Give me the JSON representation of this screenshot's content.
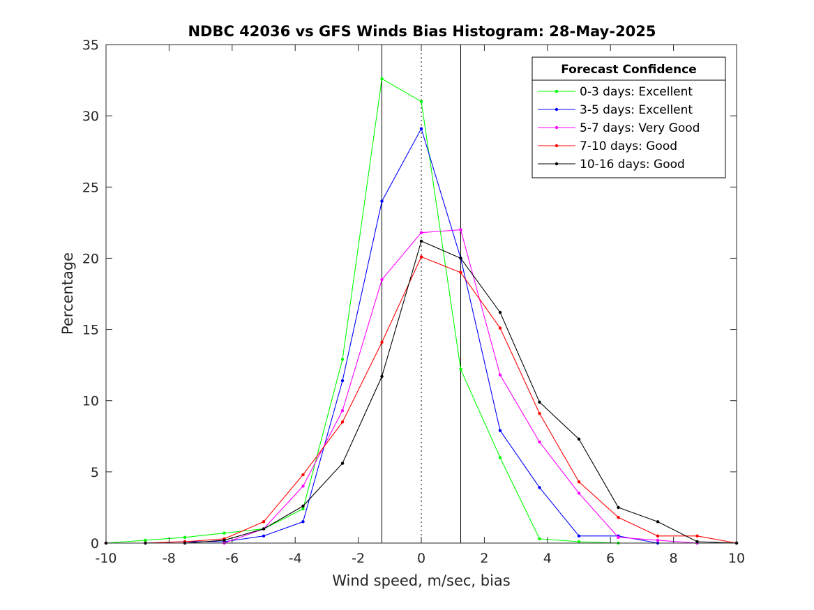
{
  "chart_data": {
    "type": "line",
    "title": "NDBC 42036 vs GFS Winds Bias Histogram: 28-May-2025",
    "xlabel": "Wind speed, m/sec, bias",
    "ylabel": "Percentage",
    "xlim": [
      -10,
      10
    ],
    "ylim": [
      0,
      35
    ],
    "xticks": [
      -10,
      -8,
      -6,
      -4,
      -2,
      0,
      2,
      4,
      6,
      8,
      10
    ],
    "yticks": [
      0,
      5,
      10,
      15,
      20,
      25,
      30,
      35
    ],
    "grid": false,
    "legend": {
      "title": "Forecast Confidence",
      "placement": "top-right"
    },
    "reference_lines": {
      "solid": [
        -1.25,
        1.25
      ],
      "dotted": [
        0
      ]
    },
    "x": [
      -10,
      -8.75,
      -7.5,
      -6.25,
      -5,
      -3.75,
      -2.5,
      -1.25,
      0,
      1.25,
      2.5,
      3.75,
      5,
      6.25,
      7.5,
      8.75,
      10
    ],
    "series": [
      {
        "name": "0-3 days: Excellent",
        "color": "#00ff00",
        "values": [
          0,
          0.2,
          0.4,
          0.7,
          1.0,
          2.4,
          12.9,
          32.6,
          31.0,
          12.2,
          6.0,
          0.3,
          0.1,
          0.0,
          0.0,
          0.0,
          0.0
        ]
      },
      {
        "name": "3-5 days: Excellent",
        "color": "#0000ff",
        "values": [
          0,
          0.0,
          0.1,
          0.1,
          0.5,
          1.5,
          11.4,
          24.0,
          29.1,
          20.0,
          7.9,
          3.9,
          0.5,
          0.5,
          0.0,
          0.0,
          0.0
        ]
      },
      {
        "name": "5-7 days: Very Good",
        "color": "#ff00ff",
        "values": [
          0,
          0.0,
          0.0,
          0.0,
          1.0,
          4.0,
          9.3,
          18.5,
          21.8,
          22.0,
          11.8,
          7.1,
          3.5,
          0.4,
          0.2,
          0.0,
          0.0
        ]
      },
      {
        "name": "7-10 days: Good",
        "color": "#ff0000",
        "values": [
          0,
          0.0,
          0.1,
          0.3,
          1.5,
          4.8,
          8.5,
          14.1,
          20.1,
          19.0,
          15.1,
          9.1,
          4.3,
          1.8,
          0.5,
          0.5,
          0.0
        ]
      },
      {
        "name": "10-16 days: Good",
        "color": "#000000",
        "values": [
          0,
          0.0,
          0.0,
          0.2,
          1.0,
          2.6,
          5.6,
          11.7,
          21.2,
          20.0,
          16.2,
          9.9,
          7.3,
          2.5,
          1.5,
          0.1,
          0.0
        ]
      }
    ]
  }
}
